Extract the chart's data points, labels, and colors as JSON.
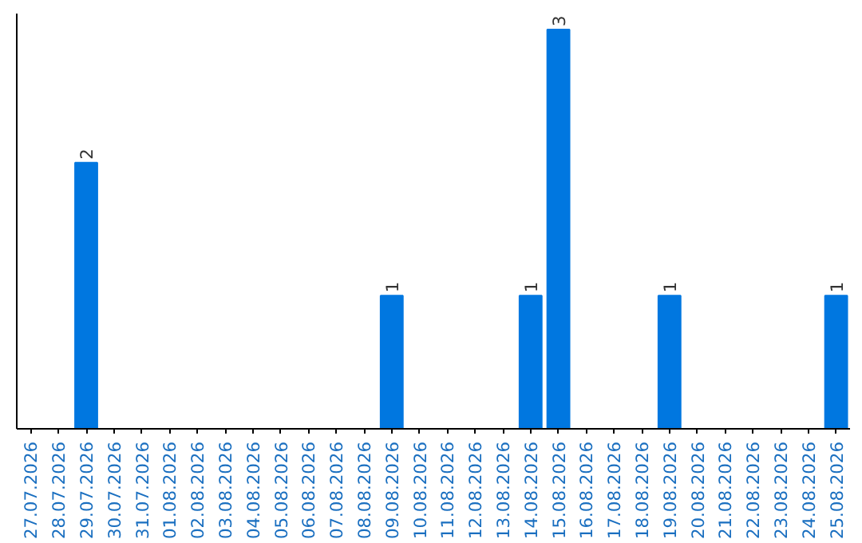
{
  "chart_data": {
    "type": "bar",
    "categories": [
      "27.07.2026",
      "28.07.2026",
      "29.07.2026",
      "30.07.2026",
      "31.07.2026",
      "01.08.2026",
      "02.08.2026",
      "03.08.2026",
      "04.08.2026",
      "05.08.2026",
      "06.08.2026",
      "07.08.2026",
      "08.08.2026",
      "09.08.2026",
      "10.08.2026",
      "11.08.2026",
      "12.08.2026",
      "13.08.2026",
      "14.08.2026",
      "15.08.2026",
      "16.08.2026",
      "17.08.2026",
      "18.08.2026",
      "19.08.2026",
      "20.08.2026",
      "21.08.2026",
      "22.08.2026",
      "23.08.2026",
      "24.08.2026",
      "25.08.2026"
    ],
    "values": [
      0,
      0,
      2,
      0,
      0,
      0,
      0,
      0,
      0,
      0,
      0,
      0,
      0,
      1,
      0,
      0,
      0,
      0,
      1,
      3,
      0,
      0,
      0,
      1,
      0,
      0,
      0,
      0,
      0,
      1
    ],
    "value_labels": [
      null,
      null,
      "2",
      null,
      null,
      null,
      null,
      null,
      null,
      null,
      null,
      null,
      null,
      "1",
      null,
      null,
      null,
      null,
      "1",
      "3",
      null,
      null,
      null,
      "1",
      null,
      null,
      null,
      null,
      null,
      "1"
    ],
    "color": "#0077e0",
    "grid": false,
    "tick_labels": "x"
  }
}
